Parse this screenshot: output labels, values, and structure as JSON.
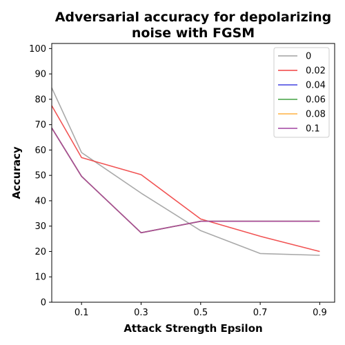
{
  "chart_data": {
    "type": "line",
    "title": [
      "Adversarial accuracy for depolarizing",
      "noise with FGSM"
    ],
    "xlabel": "Attack Strength Epsilon",
    "ylabel": "Accuracy",
    "x": [
      0.0,
      0.1,
      0.3,
      0.5,
      0.7,
      0.9
    ],
    "xticks": [
      0.1,
      0.3,
      0.5,
      0.7,
      0.9
    ],
    "xtick_labels": [
      "0.1",
      "0.3",
      "0.5",
      "0.7",
      "0.9"
    ],
    "xlim": [
      0.0,
      0.95
    ],
    "ylim": [
      0,
      102
    ],
    "yticks": [
      0,
      10,
      20,
      30,
      40,
      50,
      60,
      70,
      80,
      90,
      100
    ],
    "ytick_labels": [
      "0",
      "10",
      "20",
      "30",
      "40",
      "50",
      "60",
      "70",
      "80",
      "90",
      "100"
    ],
    "grid": false,
    "legend_position": "top-right",
    "series": [
      {
        "name": "0",
        "color": "#a0a0a0",
        "values": [
          84.5,
          59.0,
          43.0,
          28.2,
          19.2,
          18.5
        ]
      },
      {
        "name": "0.02",
        "color": "#f04040",
        "values": [
          77.5,
          57.0,
          50.3,
          32.8,
          26.0,
          20.0
        ]
      },
      {
        "name": "0.04",
        "color": "#4040e0",
        "values": [
          68.7,
          49.6,
          27.4,
          31.9,
          31.9,
          31.9
        ]
      },
      {
        "name": "0.06",
        "color": "#40a040",
        "values": [
          68.7,
          49.6,
          27.4,
          31.9,
          31.9,
          31.9
        ]
      },
      {
        "name": "0.08",
        "color": "#ffb040",
        "values": [
          68.7,
          49.6,
          27.4,
          31.9,
          31.9,
          31.9
        ]
      },
      {
        "name": "0.1",
        "color": "#a040a0",
        "values": [
          68.7,
          49.6,
          27.4,
          31.9,
          31.9,
          31.9
        ]
      }
    ]
  }
}
